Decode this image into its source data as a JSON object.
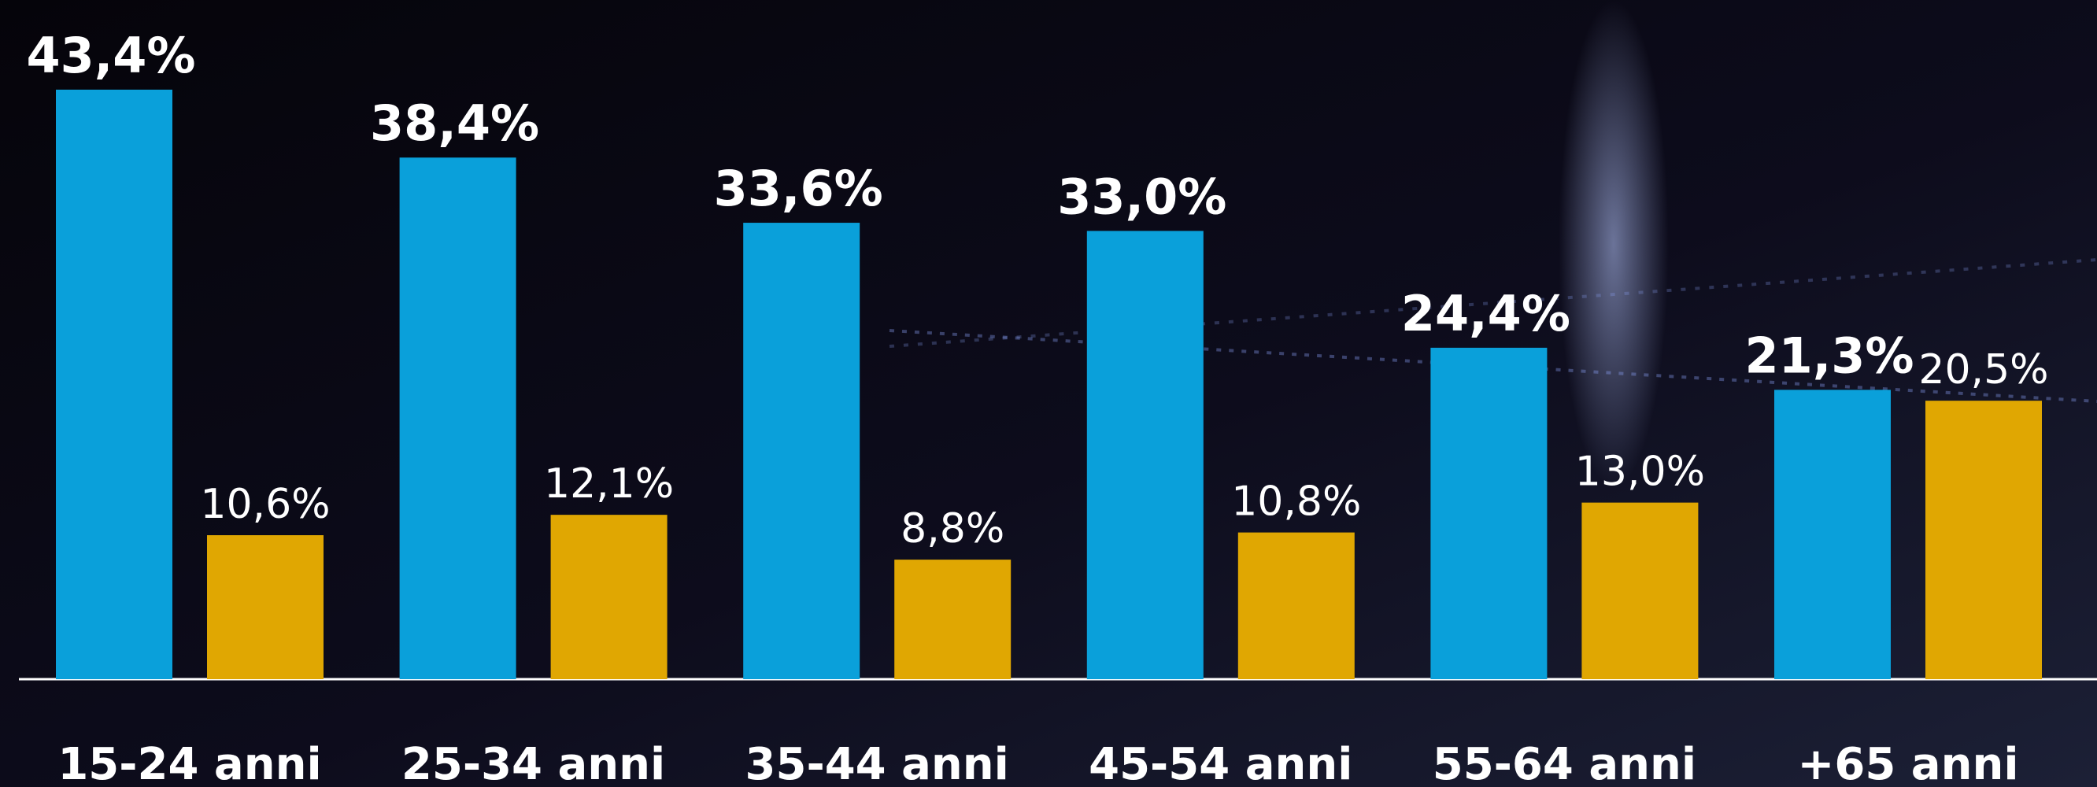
{
  "chart_data": {
    "type": "bar",
    "categories": [
      "15-24 anni",
      "25-34 anni",
      "35-44 anni",
      "45-54 anni",
      "55-64 anni",
      "+65 anni"
    ],
    "series": [
      {
        "color": "#0aa0da",
        "values": [
          43.4,
          38.4,
          33.6,
          33.0,
          24.4,
          21.3
        ],
        "value_labels": [
          "43,4%",
          "38,4%",
          "33,6%",
          "33,0%",
          "24,4%",
          "21,3%"
        ]
      },
      {
        "color": "#e0a702",
        "values": [
          10.6,
          12.1,
          8.8,
          10.8,
          13.0,
          20.5
        ],
        "value_labels": [
          "10,6%",
          "12,1%",
          "8,8%",
          "10,8%",
          "13,0%",
          "20,5%"
        ]
      }
    ]
  }
}
